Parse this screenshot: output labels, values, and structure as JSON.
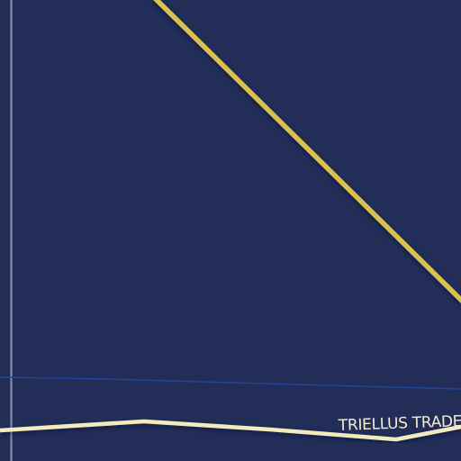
{
  "map": {
    "background_color": "#222e58",
    "route_labels": [
      {
        "id": "triellus-trade",
        "text": "TRIELLUS TRADE"
      }
    ],
    "routes": [
      {
        "id": "yellow-route",
        "color": "#d8c24e",
        "kind": "diagonal line"
      },
      {
        "id": "cream-route",
        "color": "#f1ebbd",
        "kind": "horizontal line"
      },
      {
        "id": "blue-route",
        "color": "#1f4699",
        "kind": "thin horizontal line"
      },
      {
        "id": "grey-route",
        "color": "#9ea6c2",
        "kind": "thin vertical line"
      }
    ]
  }
}
